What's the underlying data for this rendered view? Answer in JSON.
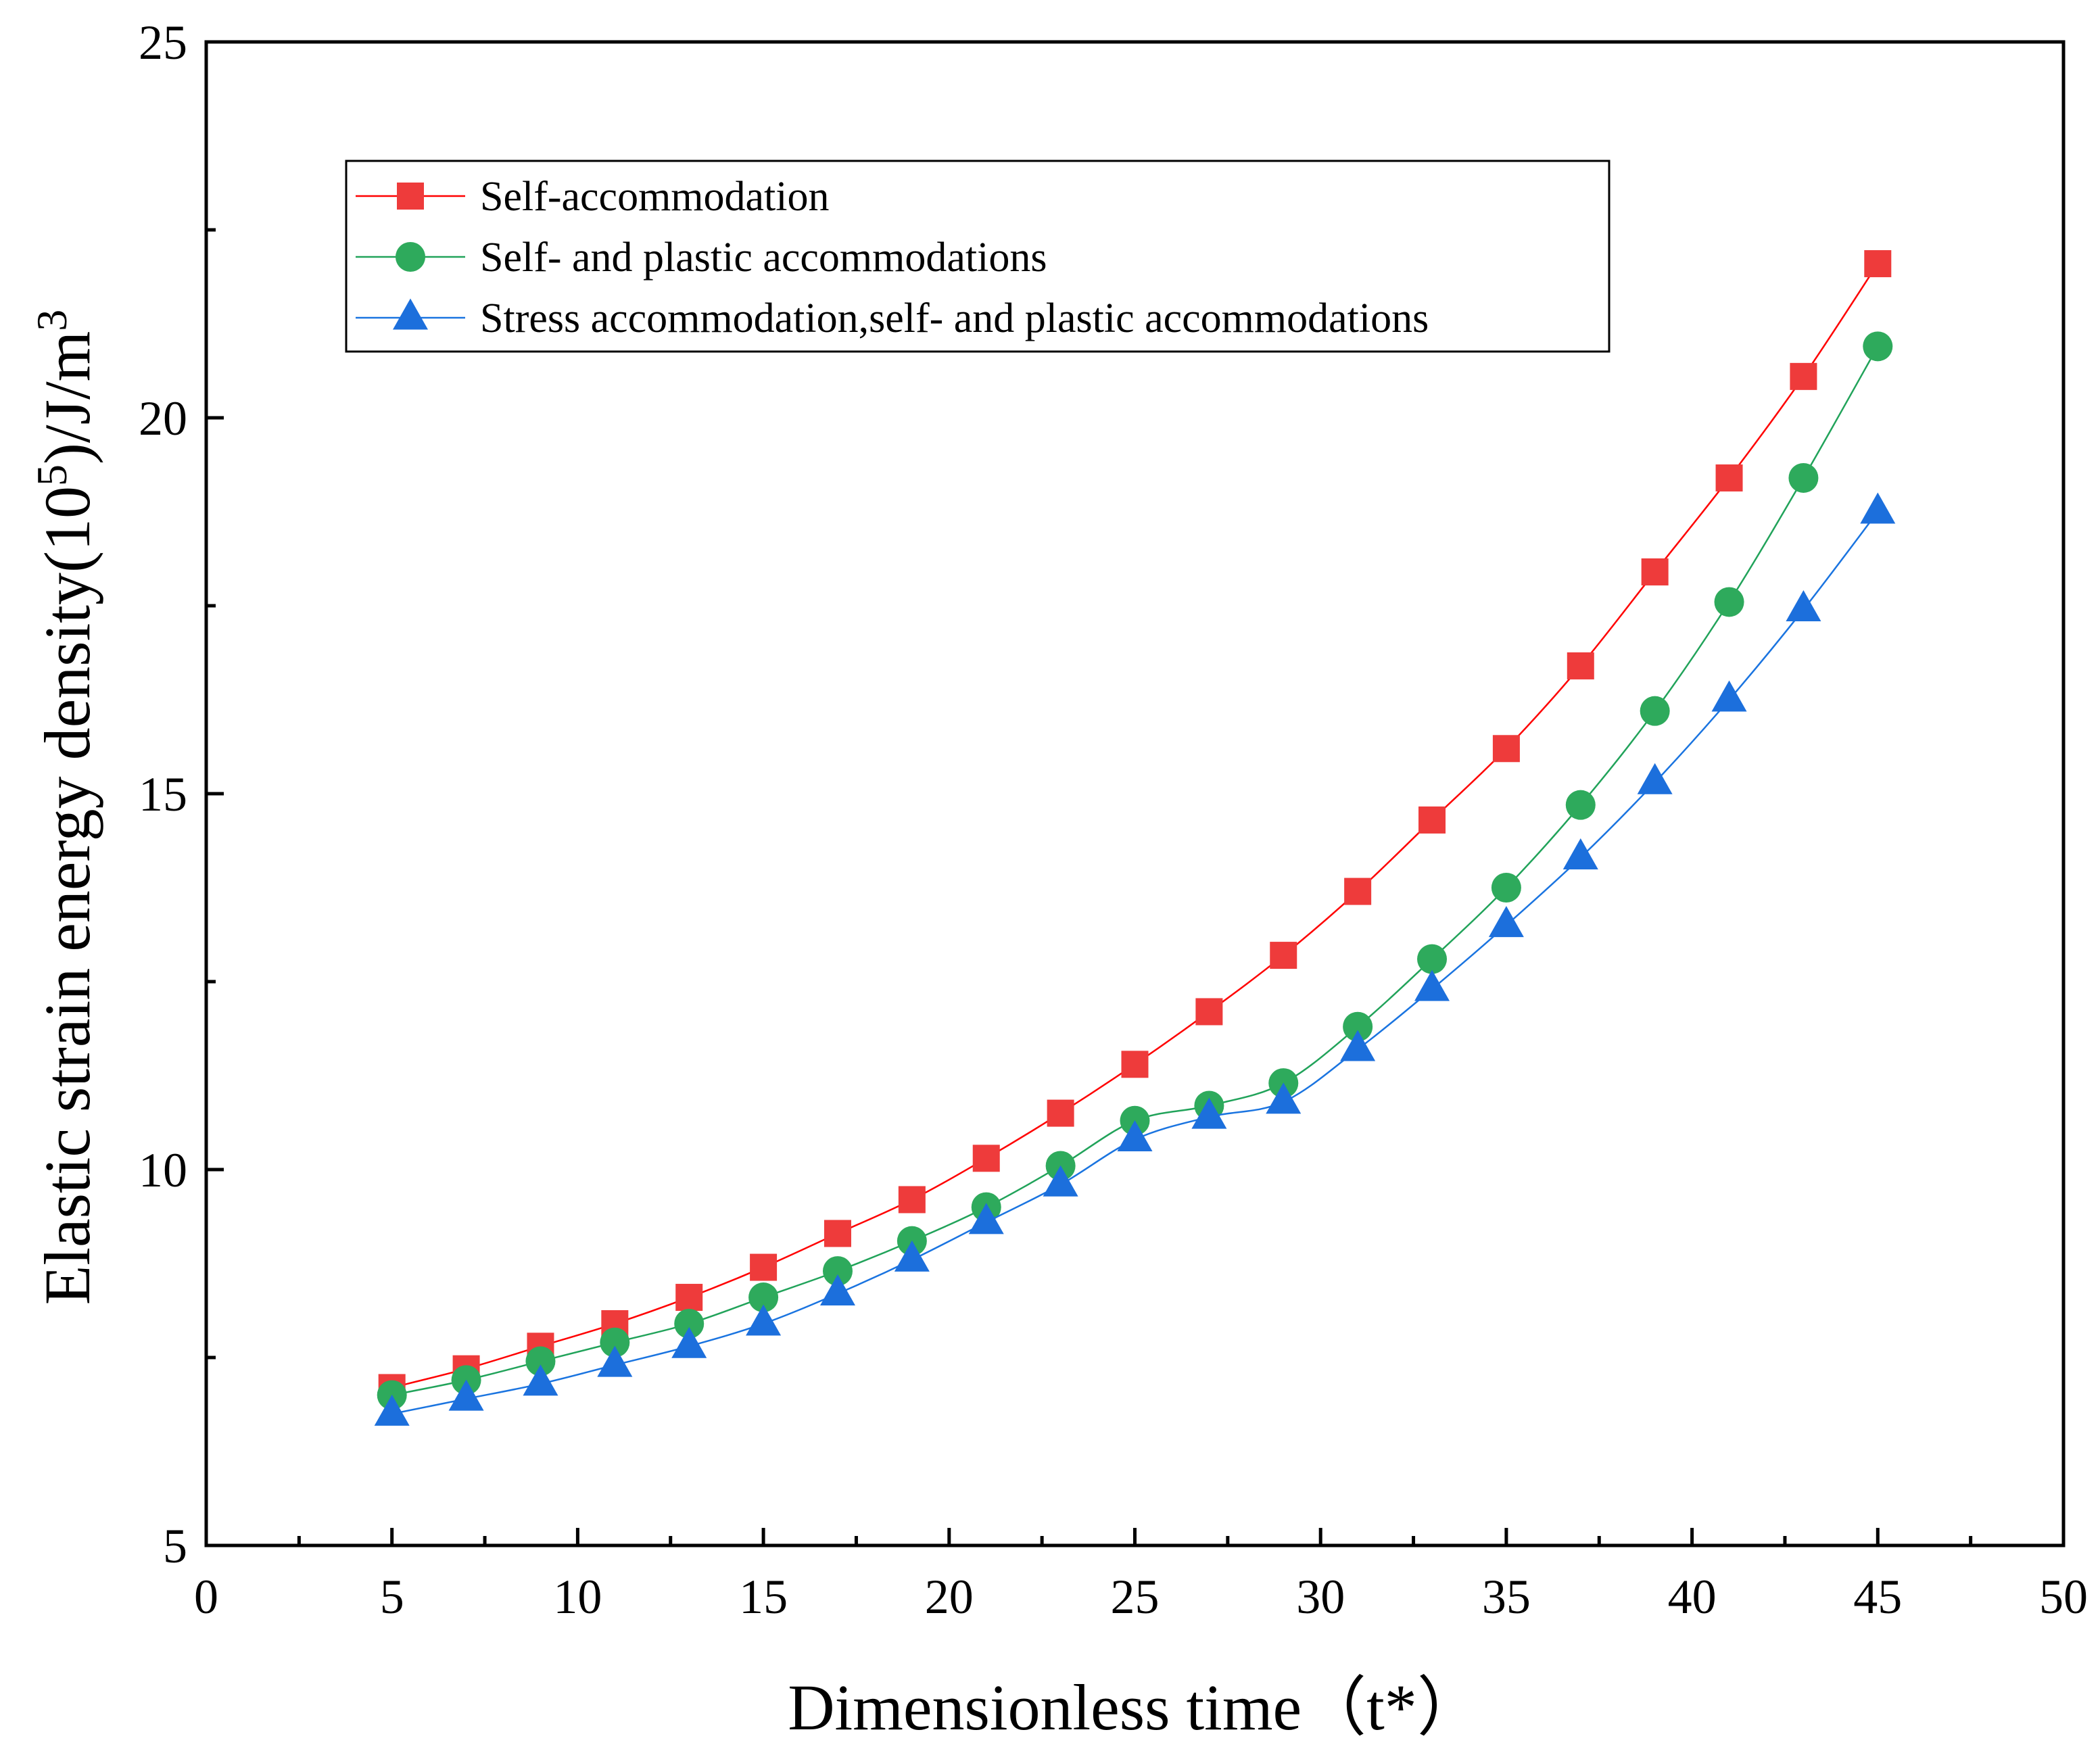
{
  "chart_data": {
    "type": "line",
    "title": "",
    "xlabel": "Dimensionless time（t*）",
    "ylabel": "Elastic strain energy density(10",
    "ylabel_superscript": "5",
    "ylabel_tail": ")/J/m",
    "ylabel_tail_superscript": "3",
    "xlim": [
      0,
      50
    ],
    "ylim": [
      5,
      25
    ],
    "x_ticks": [
      0,
      5,
      10,
      15,
      20,
      25,
      30,
      35,
      40,
      45,
      50
    ],
    "y_ticks": [
      5,
      10,
      15,
      20,
      25
    ],
    "x_minor_step": 2.5,
    "y_minor_step": 2.5,
    "grid": false,
    "legend_position": "top-left",
    "x": [
      5,
      7,
      9,
      11,
      13,
      15,
      17,
      19,
      21,
      23,
      25,
      27,
      29,
      31,
      33,
      35,
      37,
      39,
      41,
      43,
      45
    ],
    "series": [
      {
        "name": "Self-accommodation",
        "marker": "square",
        "color": "#ff0000",
        "marker_color": "#ee3b3b",
        "values": [
          7.1,
          7.35,
          7.65,
          7.95,
          8.3,
          8.7,
          9.15,
          9.6,
          10.15,
          10.75,
          11.4,
          12.1,
          12.85,
          13.7,
          14.65,
          15.6,
          16.7,
          17.95,
          19.2,
          20.55,
          22.05
        ]
      },
      {
        "name": "Self- and plastic accommodations",
        "marker": "circle",
        "color": "#21a35a",
        "marker_color": "#2eaa5c",
        "values": [
          7.0,
          7.2,
          7.45,
          7.7,
          7.95,
          8.3,
          8.65,
          9.05,
          9.5,
          10.05,
          10.65,
          10.85,
          11.15,
          11.9,
          12.8,
          13.75,
          14.85,
          16.1,
          17.55,
          19.2,
          20.95
        ]
      },
      {
        "name": "Stress accommodation,self- and plastic accommodations",
        "marker": "triangle",
        "color": "#1a74e0",
        "marker_color": "#1c6fdc",
        "values": [
          6.75,
          6.95,
          7.15,
          7.4,
          7.65,
          7.95,
          8.35,
          8.8,
          9.3,
          9.8,
          10.4,
          10.7,
          10.9,
          11.6,
          12.4,
          13.25,
          14.15,
          15.15,
          16.25,
          17.45,
          18.75
        ]
      }
    ]
  }
}
